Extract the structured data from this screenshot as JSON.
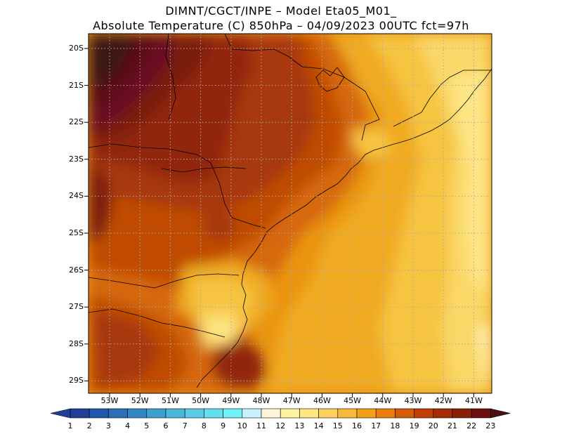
{
  "title": {
    "line1": "DIMNT/CGCT/INPE –  Model Eta05_M01_",
    "line2": "Absolute Temperature (C) 850hPa –  04/09/2023 00UTC fct=97h"
  },
  "lat_labels": [
    "20S",
    "21S",
    "22S",
    "23S",
    "24S",
    "25S",
    "26S",
    "27S",
    "28S",
    "29S"
  ],
  "lon_labels": [
    "53W",
    "52W",
    "51W",
    "50W",
    "49W",
    "48W",
    "47W",
    "46W",
    "45W",
    "44W",
    "43W",
    "42W",
    "41W"
  ],
  "colorbar": {
    "labels": [
      "1",
      "2",
      "3",
      "4",
      "5",
      "6",
      "7",
      "8",
      "9",
      "10",
      "11",
      "12",
      "13",
      "14",
      "15",
      "16",
      "17",
      "18",
      "19",
      "20",
      "21",
      "22",
      "23"
    ],
    "colors": [
      "#1f3f96",
      "#2157a8",
      "#2a6fb8",
      "#3387c3",
      "#3f9fcf",
      "#4cb6db",
      "#5bcbe6",
      "#62dff0",
      "#6cf2f7",
      "#c9f2ff",
      "#fff5d9",
      "#fff2a0",
      "#ffe680",
      "#fcd25c",
      "#f7b93a",
      "#f1a116",
      "#e87d0c",
      "#d85a06",
      "#c23e04",
      "#a52a05",
      "#882008",
      "#6d0f0f",
      "#4a1010"
    ]
  },
  "palette": {
    "warm_25": "#3d1414",
    "warm_24": "#5a1018",
    "warm_23": "#6a0f24",
    "warm_22": "#7a1e0f",
    "warm_21": "#92270a",
    "warm_20": "#a83808",
    "warm_19": "#c04c06",
    "warm_18": "#d66808",
    "warm_17": "#ea9410",
    "warm_16": "#f0aa20",
    "warm_15": "#f6c440",
    "warm_14": "#fad766",
    "warm_13": "#fee585",
    "warm_12": "#fff3b0",
    "warm_11": "#fff8dc",
    "coast": "#000000",
    "grid": "#aaaaaa"
  }
}
